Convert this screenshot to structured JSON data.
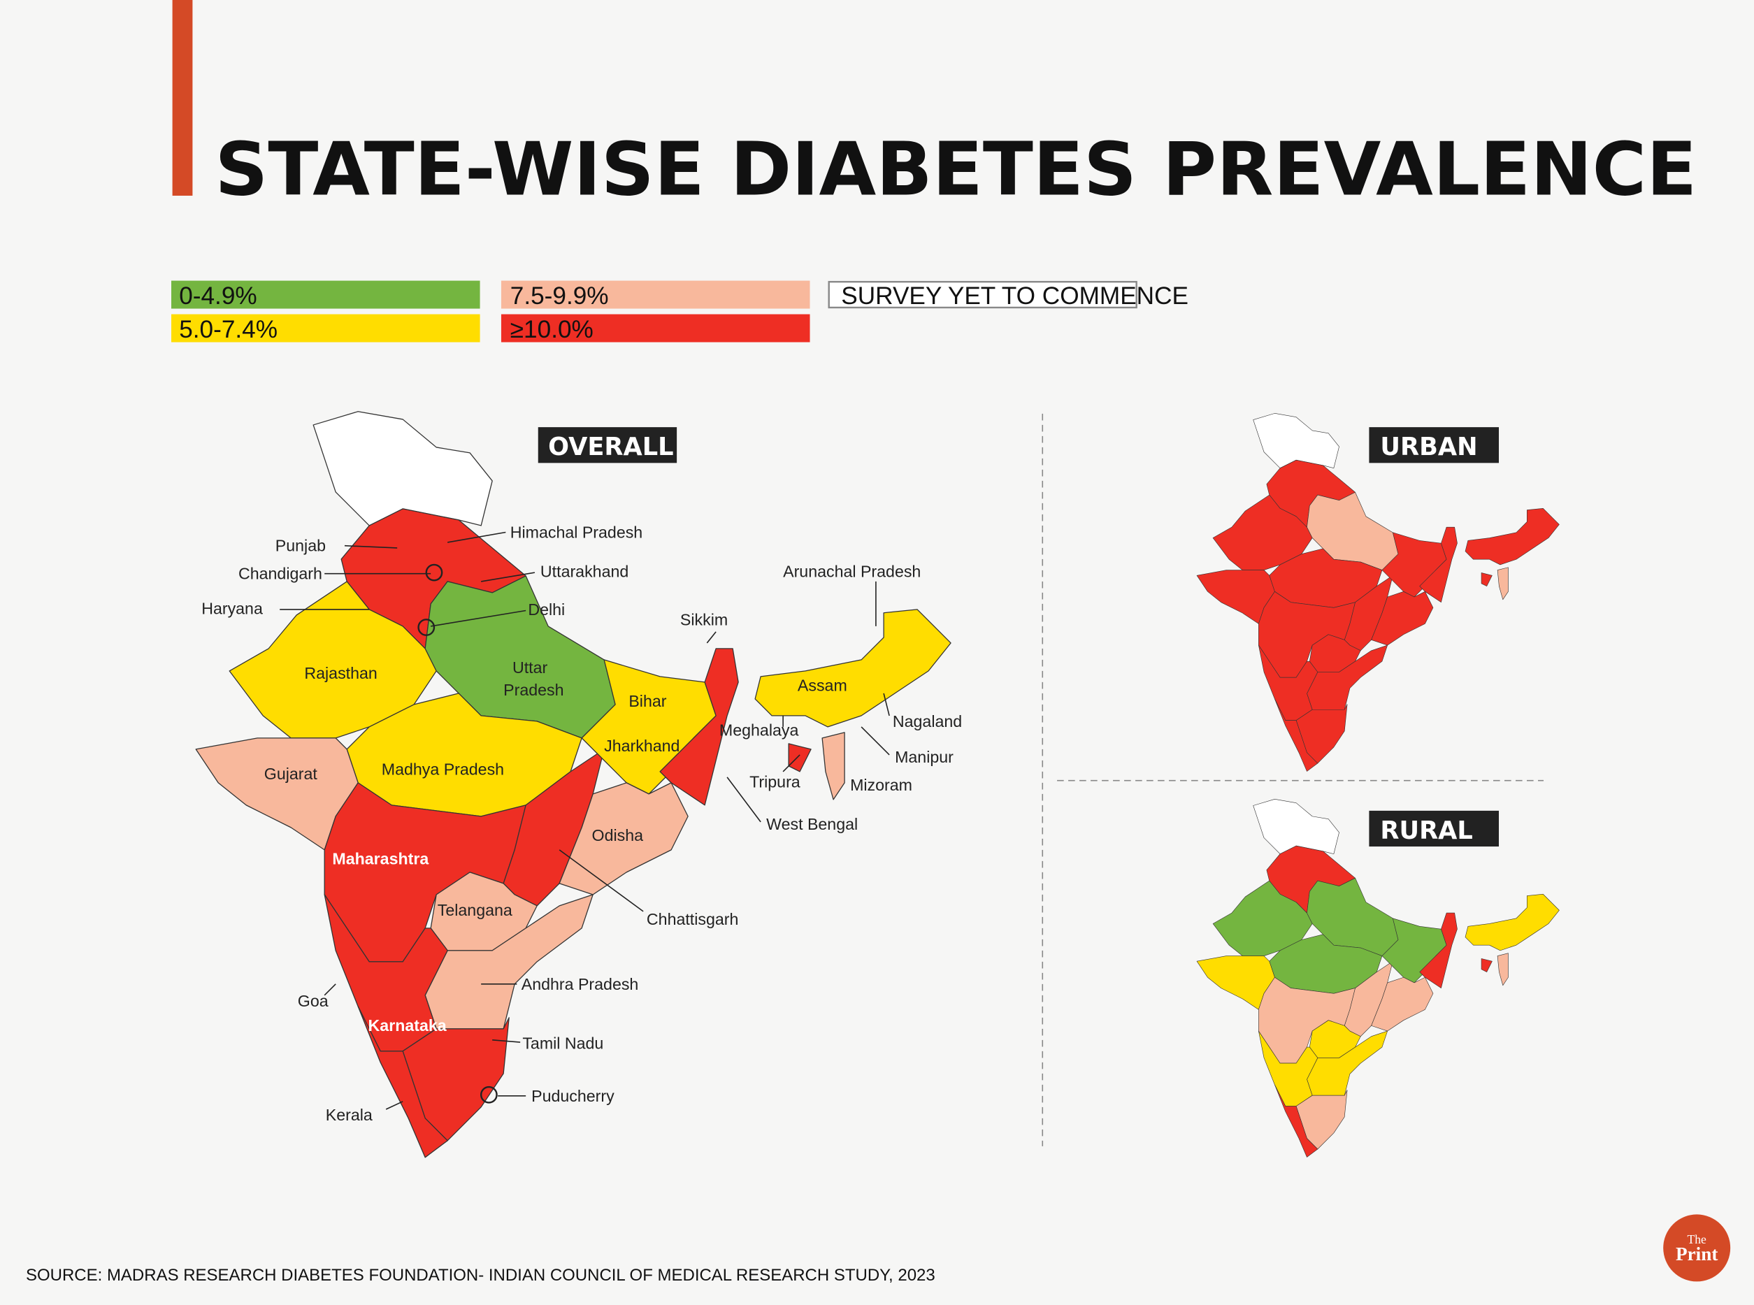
{
  "title": "STATE-WISE DIABETES PREVALENCE",
  "accent_color": "#d44a26",
  "legend": [
    {
      "key": "low",
      "label": "0-4.9%",
      "color": "#74b540"
    },
    {
      "key": "mid",
      "label": "5.0-7.4%",
      "color": "#ffdd00"
    },
    {
      "key": "high",
      "label": "7.5-9.9%",
      "color": "#f8b89c"
    },
    {
      "key": "vhigh",
      "label": "≥10.0%",
      "color": "#ee2e24"
    },
    {
      "key": "none",
      "label": "SURVEY YET TO COMMENCE",
      "color": "#ffffff"
    }
  ],
  "maps": {
    "overall": {
      "tag": "OVERALL",
      "colors": {
        "jk": "none",
        "north": "vhigh",
        "rajasthan": "mid",
        "up": "low",
        "mp": "mid",
        "gujarat": "high",
        "maharashtra": "vhigh",
        "chhattisgarh": "vhigh",
        "bihar": "mid",
        "wb": "vhigh",
        "odisha": "high",
        "telangana": "high",
        "ap": "high",
        "karnataka": "vhigh",
        "tn": "vhigh",
        "kerala": "vhigh",
        "assam": "mid",
        "mizoram": "high",
        "tripura": "vhigh"
      }
    },
    "urban": {
      "tag": "URBAN",
      "colors": {
        "jk": "none",
        "north": "vhigh",
        "rajasthan": "vhigh",
        "up": "high",
        "mp": "vhigh",
        "gujarat": "vhigh",
        "maharashtra": "vhigh",
        "chhattisgarh": "vhigh",
        "bihar": "vhigh",
        "wb": "vhigh",
        "odisha": "vhigh",
        "telangana": "vhigh",
        "ap": "vhigh",
        "karnataka": "vhigh",
        "tn": "vhigh",
        "kerala": "vhigh",
        "assam": "vhigh",
        "mizoram": "high",
        "tripura": "vhigh"
      }
    },
    "rural": {
      "tag": "RURAL",
      "colors": {
        "jk": "none",
        "north": "vhigh",
        "rajasthan": "low",
        "up": "low",
        "mp": "low",
        "gujarat": "mid",
        "maharashtra": "high",
        "chhattisgarh": "high",
        "bihar": "low",
        "wb": "vhigh",
        "odisha": "high",
        "telangana": "mid",
        "ap": "mid",
        "karnataka": "mid",
        "tn": "high",
        "kerala": "vhigh",
        "assam": "mid",
        "mizoram": "high",
        "tripura": "vhigh"
      }
    }
  },
  "labels": {
    "punjab": "Punjab",
    "chandigarh": "Chandigarh",
    "haryana": "Haryana",
    "himachal": "Himachal Pradesh",
    "uttarakhand": "Uttarakhand",
    "delhi": "Delhi",
    "rajasthan": "Rajasthan",
    "up1": "Uttar",
    "up2": "Pradesh",
    "bihar": "Bihar",
    "sikkim": "Sikkim",
    "arunachal": "Arunachal Pradesh",
    "assam": "Assam",
    "meghalaya": "Meghalaya",
    "nagaland": "Nagaland",
    "manipur": "Manipur",
    "tripura": "Tripura",
    "mizoram": "Mizoram",
    "jharkhand": "Jharkhand",
    "gujarat": "Gujarat",
    "mp": "Madhya Pradesh",
    "wb": "West Bengal",
    "odisha": "Odisha",
    "maharashtra": "Maharashtra",
    "telangana": "Telangana",
    "chhattisgarh": "Chhattisgarh",
    "ap": "Andhra Pradesh",
    "goa": "Goa",
    "karnataka": "Karnataka",
    "tn": "Tamil Nadu",
    "puducherry": "Puducherry",
    "kerala": "Kerala"
  },
  "source": "SOURCE:  MADRAS RESEARCH DIABETES FOUNDATION- INDIAN COUNCIL OF MEDICAL RESEARCH STUDY, 2023",
  "logo": {
    "line1": "The",
    "line2": "Print",
    "color": "#d44a26"
  }
}
